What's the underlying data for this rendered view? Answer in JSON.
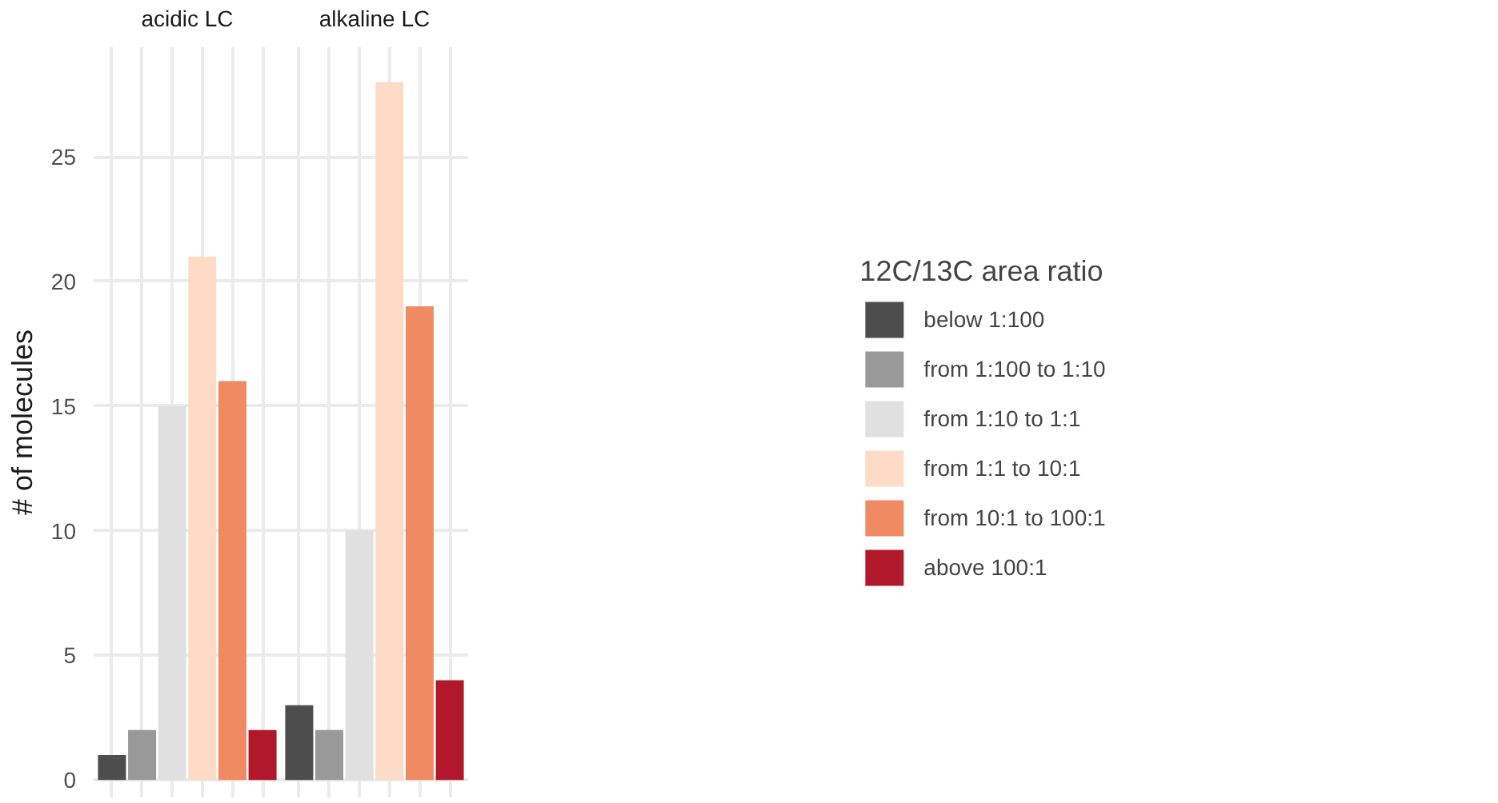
{
  "chart_data": {
    "type": "bar",
    "ylabel": "# of molecules",
    "legend_title": "12C/13C area ratio",
    "categories": [
      "acidic LC",
      "alkaline LC"
    ],
    "series": [
      {
        "name": "below 1:100",
        "color": "#4d4d4d",
        "values": [
          1,
          3
        ]
      },
      {
        "name": "from 1:100 to 1:10",
        "color": "#999999",
        "values": [
          2,
          2
        ]
      },
      {
        "name": "from 1:10 to 1:1",
        "color": "#e0e0e0",
        "values": [
          15,
          10
        ]
      },
      {
        "name": "from 1:1 to 10:1",
        "color": "#fddbc7",
        "values": [
          21,
          28
        ]
      },
      {
        "name": "from 10:1 to 100:1",
        "color": "#ef8a62",
        "values": [
          16,
          19
        ]
      },
      {
        "name": "above 100:1",
        "color": "#b2182b",
        "values": [
          2,
          4
        ]
      }
    ],
    "ylim": [
      -0.7,
      29.4
    ],
    "yticks": [
      0,
      5,
      10,
      15,
      20,
      25
    ],
    "grid": true,
    "legend": "right"
  }
}
